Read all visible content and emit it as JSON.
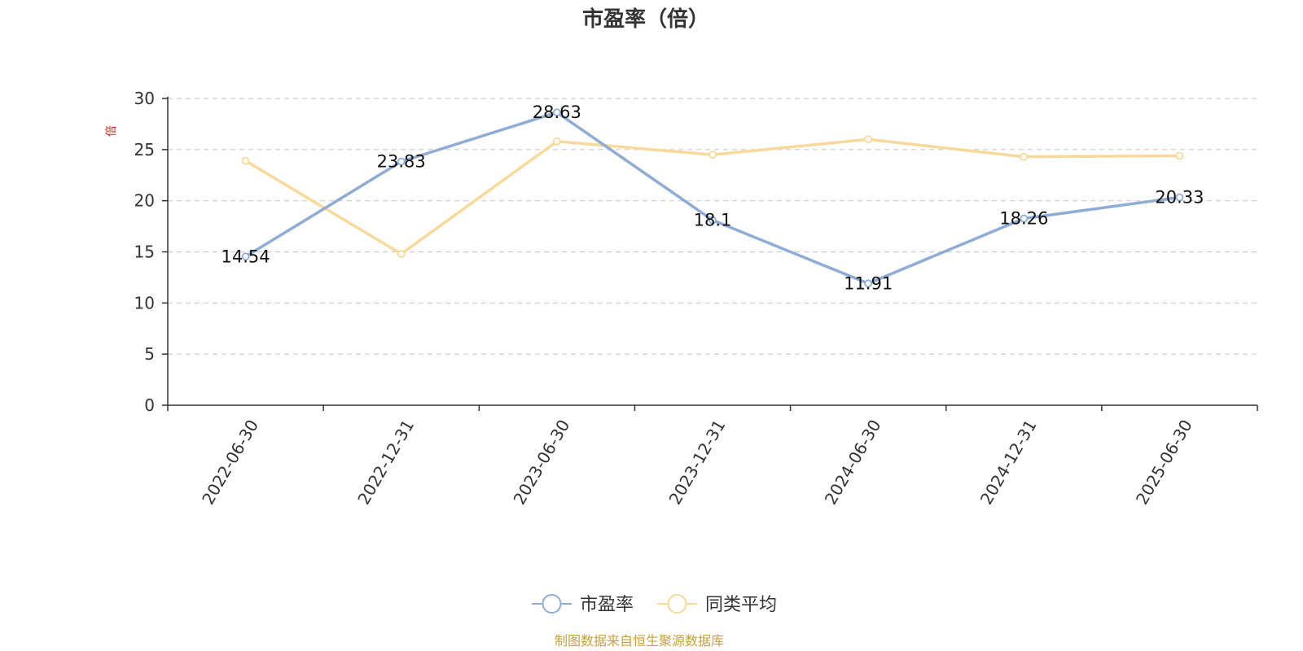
{
  "chart_data": {
    "type": "line",
    "title": "市盈率（倍）",
    "ylabel": "倍",
    "categories": [
      "2022-06-30",
      "2022-12-31",
      "2023-06-30",
      "2023-12-31",
      "2024-06-30",
      "2024-12-31",
      "2025-06-30"
    ],
    "ylim": [
      0,
      30
    ],
    "yticks": [
      0,
      5,
      10,
      15,
      20,
      25,
      30
    ],
    "grid": true,
    "legend_position": "bottom-center",
    "series": [
      {
        "name": "市盈率",
        "values": [
          14.54,
          23.83,
          28.63,
          18.1,
          11.91,
          18.26,
          20.33
        ],
        "labels": [
          "14.54",
          "23.83",
          "28.63",
          "18.1",
          "11.91",
          "18.26",
          "20.33"
        ],
        "color": "#8eacd6"
      },
      {
        "name": "同类平均",
        "values": [
          23.9,
          14.8,
          25.8,
          24.5,
          26.0,
          24.3,
          24.4
        ],
        "color": "#f8d99a"
      }
    ]
  },
  "colors": {
    "unit_label": "#e0201b",
    "source_text": "#c7a03b",
    "axis": "#333333",
    "grid": "#cccccc"
  },
  "source_note": "制图数据来自恒生聚源数据库"
}
